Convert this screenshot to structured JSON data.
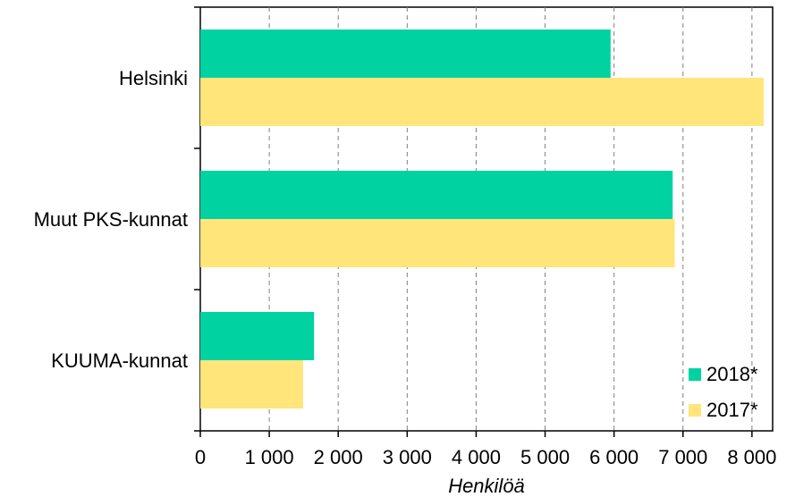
{
  "chart_data": {
    "type": "bar",
    "orientation": "horizontal",
    "categories": [
      "Helsinki",
      "Muut PKS-kunnat",
      "KUUMA-kunnat"
    ],
    "series": [
      {
        "name": "2018*",
        "color": "#00d3a1",
        "values": [
          5950,
          6850,
          1650
        ]
      },
      {
        "name": "2017*",
        "color": "#ffe57a",
        "values": [
          8170,
          6880,
          1490
        ]
      }
    ],
    "xlabel": "Henkilöä",
    "xlim": [
      0,
      8300
    ],
    "xticks": [
      0,
      1000,
      2000,
      3000,
      4000,
      5000,
      6000,
      7000,
      8000
    ],
    "xtick_labels": [
      "0",
      "1 000",
      "2 000",
      "3 000",
      "4 000",
      "5 000",
      "6 000",
      "7 000",
      "8 000"
    ],
    "grid": "vertical dashed",
    "legend_position": "bottom-right"
  }
}
